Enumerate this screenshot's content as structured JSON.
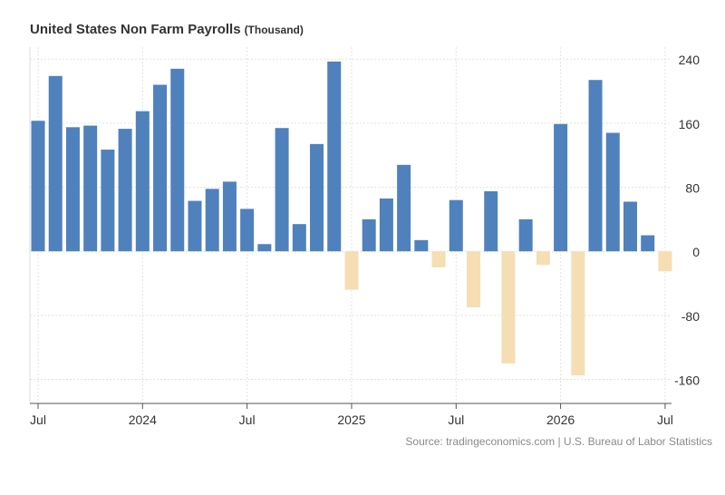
{
  "title": {
    "main": "United States Non Farm Payrolls",
    "unit": "(Thousand)"
  },
  "source": "Source: tradingeconomics.com | U.S. Bureau of Labor Statistics",
  "colors": {
    "positive": "#4f81bd",
    "negative": "#f5deb3",
    "grid": "#e3e3e3",
    "axis": "#555555"
  },
  "chart_data": {
    "type": "bar",
    "title": "United States Non Farm Payrolls (Thousand)",
    "xlabel": "",
    "ylabel": "",
    "grid": true,
    "legend": "none",
    "y_axis_side": "right",
    "ylim": [
      -190,
      255
    ],
    "yticks": [
      240,
      160,
      80,
      0,
      -80,
      -160
    ],
    "x_tick_labels": [
      {
        "label": "Jul",
        "month": "2023-07"
      },
      {
        "label": "2024",
        "month": "2024-01"
      },
      {
        "label": "Jul",
        "month": "2024-07"
      },
      {
        "label": "2025",
        "month": "2025-01"
      },
      {
        "label": "Jul",
        "month": "2025-07"
      },
      {
        "label": "2026",
        "month": "2026-01"
      },
      {
        "label": "Jul",
        "month": "2026-07"
      }
    ],
    "categories": [
      "2023-07",
      "2023-08",
      "2023-09",
      "2023-10",
      "2023-11",
      "2023-12",
      "2024-01",
      "2024-02",
      "2024-03",
      "2024-04",
      "2024-05",
      "2024-06",
      "2024-07",
      "2024-08",
      "2024-09",
      "2024-10",
      "2024-11",
      "2024-12",
      "2025-01",
      "2025-02",
      "2025-03",
      "2025-04",
      "2025-05",
      "2025-06",
      "2025-07",
      "2025-08",
      "2025-09",
      "2025-10",
      "2025-11",
      "2025-12",
      "2026-01",
      "2026-02",
      "2026-03",
      "2026-04",
      "2026-05",
      "2026-06",
      "2026-07"
    ],
    "values": [
      163,
      219,
      155,
      157,
      127,
      153,
      175,
      208,
      228,
      63,
      78,
      87,
      53,
      9,
      154,
      34,
      134,
      237,
      -48,
      40,
      66,
      108,
      14,
      -20,
      64,
      -70,
      75,
      -140,
      40,
      -17,
      159,
      -155,
      214,
      148,
      62,
      20,
      -25
    ]
  }
}
